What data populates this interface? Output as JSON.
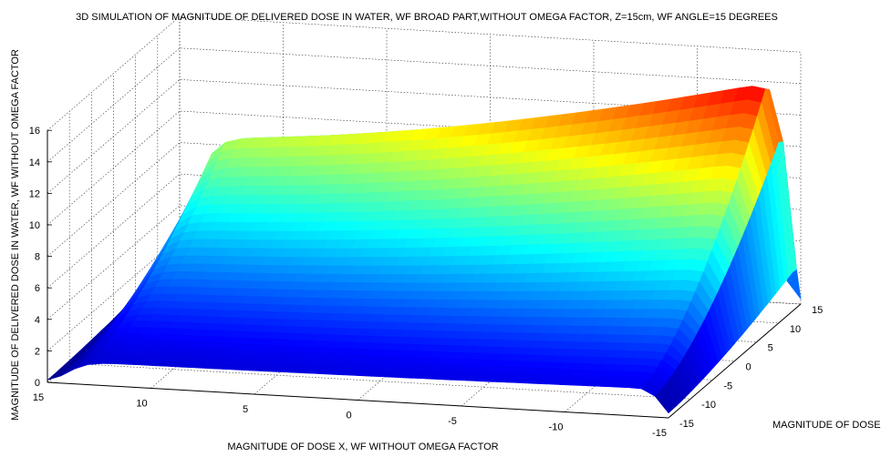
{
  "chart_data": {
    "type": "surface3d",
    "title": "3D SIMULATION OF MAGNITUDE OF DELIVERED DOSE IN WATER, WF BROAD PART,WITHOUT OMEGA FACTOR, Z=15cm, WF ANGLE=15 DEGREES",
    "xlabel": "MAGNITUDE OF DOSE X, WF WITHOUT OMEGA FACTOR",
    "ylabel": "MAGNITUDE OF DOSE Y,",
    "zlabel": "MAGNITUDE OF DELIVERED DOSE IN WATER, WF WITHOUT OMEGA FACTOR",
    "xlim": [
      -15,
      15
    ],
    "ylim": [
      -15,
      15
    ],
    "zlim": [
      0,
      16
    ],
    "x_ticks": [
      15,
      10,
      5,
      0,
      -5,
      -10,
      -15
    ],
    "y_ticks": [
      -15,
      -10,
      -5,
      0,
      5,
      10,
      15
    ],
    "z_ticks": [
      0,
      2,
      4,
      6,
      8,
      10,
      12,
      14,
      16
    ],
    "grid": true,
    "colormap": "jet",
    "surface_profile": {
      "description_points_z_at_y15": [
        {
          "x": 15,
          "z": 0.2
        },
        {
          "x": 14,
          "z": 9.0
        },
        {
          "x": 10,
          "z": 10.2
        },
        {
          "x": 5,
          "z": 11.2
        },
        {
          "x": 0,
          "z": 12.2
        },
        {
          "x": -5,
          "z": 13.3
        },
        {
          "x": -10,
          "z": 14.6
        },
        {
          "x": -13.5,
          "z": 16.0
        },
        {
          "x": -15,
          "z": 0.2
        }
      ],
      "y_falloff": "dose decreases toward y=-15 where it reaches about 1-2"
    }
  }
}
